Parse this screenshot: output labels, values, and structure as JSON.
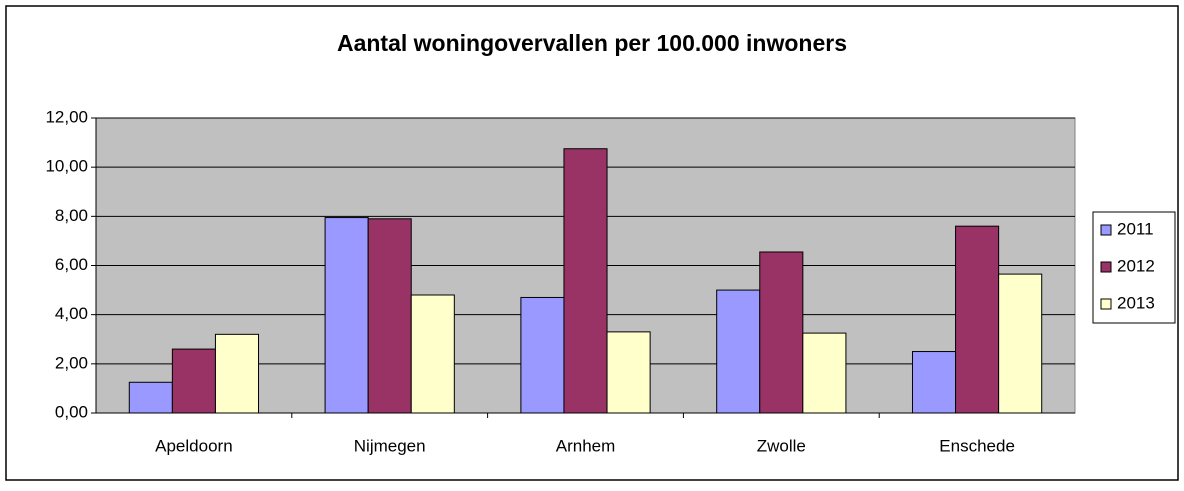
{
  "chart_data": {
    "type": "bar",
    "title": "Aantal woningovervallen per 100.000 inwoners",
    "categories": [
      "Apeldoorn",
      "Nijmegen",
      "Arnhem",
      "Zwolle",
      "Enschede"
    ],
    "series": [
      {
        "name": "2011",
        "color": "#9999ff",
        "values": [
          1.25,
          7.95,
          4.7,
          5.0,
          2.5
        ]
      },
      {
        "name": "2012",
        "color": "#993366",
        "values": [
          2.6,
          7.9,
          10.75,
          6.55,
          7.6
        ]
      },
      {
        "name": "2013",
        "color": "#ffffcc",
        "values": [
          3.2,
          4.8,
          3.3,
          3.25,
          5.65
        ]
      }
    ],
    "ylim": [
      0,
      12
    ],
    "yticks": [
      {
        "value": 0,
        "label": "0,00"
      },
      {
        "value": 2,
        "label": "2,00"
      },
      {
        "value": 4,
        "label": "4,00"
      },
      {
        "value": 6,
        "label": "6,00"
      },
      {
        "value": 8,
        "label": "8,00"
      },
      {
        "value": 10,
        "label": "10,00"
      },
      {
        "value": 12,
        "label": "12,00"
      }
    ],
    "grid": true,
    "legend": "right"
  }
}
